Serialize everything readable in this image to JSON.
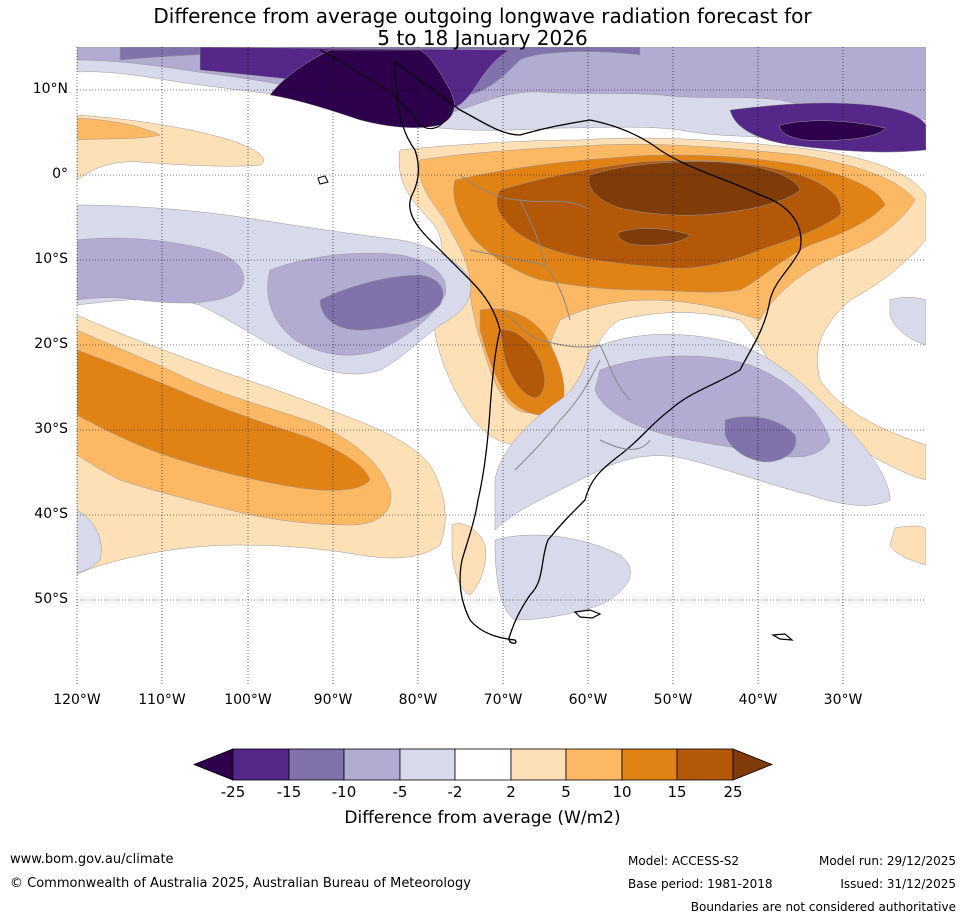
{
  "title_line1": "Difference from average outgoing longwave radiation forecast for",
  "title_line2": "5 to 18 January 2026",
  "lat_labels": [
    "10°N",
    "0°",
    "10°S",
    "20°S",
    "30°S",
    "40°S",
    "50°S"
  ],
  "lon_labels": [
    "120°W",
    "110°W",
    "100°W",
    "90°W",
    "80°W",
    "70°W",
    "60°W",
    "50°W",
    "40°W",
    "30°W"
  ],
  "colorbar": {
    "ticks": [
      "-25",
      "-15",
      "-10",
      "-5",
      "-2",
      "2",
      "5",
      "10",
      "15",
      "25"
    ],
    "colors": [
      "#2d004b",
      "#542788",
      "#8073ac",
      "#b2abd2",
      "#d8daeb",
      "#ffffff",
      "#fee0b6",
      "#fdb863",
      "#e08214",
      "#b35806",
      "#7f3b08"
    ],
    "title": "Difference from average (W/m2)"
  },
  "footer": {
    "url": "www.bom.gov.au/climate",
    "copyright": "© Commonwealth of Australia 2025, Australian Bureau of Meteorology",
    "model": "Model: ACCESS-S2",
    "base_period": "Base period: 1981-2018",
    "model_run": "Model run: 29/12/2025",
    "issued": "Issued: 31/12/2025",
    "disclaimer": "Boundaries are not considered authoritative"
  }
}
